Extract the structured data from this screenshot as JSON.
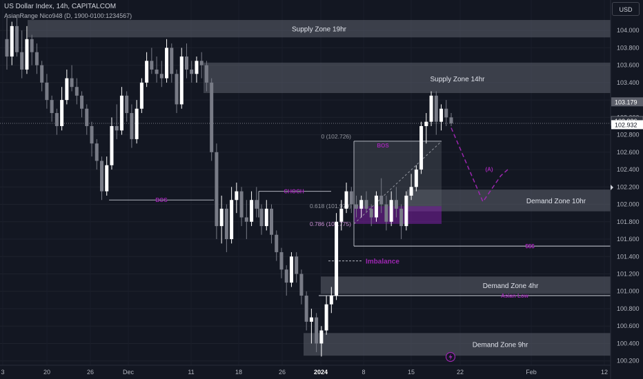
{
  "header": {
    "title": "US Dollar Index, 14h, CAPITALCOM",
    "indicator": "AsianRange Nico948 (D, 1900-0100:1234567)",
    "currency": "USD"
  },
  "colors": {
    "background": "#131722",
    "bull": "#ffffff",
    "bear": "#787b86",
    "zone": "#5d606b",
    "accent": "#9c27b0",
    "fib_zone": "#7b1fa2",
    "text": "#d1d4dc"
  },
  "chart_data": {
    "type": "candlestick",
    "ylim": [
      100.15,
      104.35
    ],
    "y_ticks": [
      "104.000",
      "103.800",
      "103.600",
      "103.400",
      "103.200",
      "103.000",
      "102.800",
      "102.600",
      "102.400",
      "102.200",
      "102.000",
      "101.800",
      "101.600",
      "101.400",
      "101.200",
      "101.000",
      "100.800",
      "100.600",
      "100.400",
      "100.200"
    ],
    "x_ticks": [
      "3",
      "20",
      "26",
      "Dec",
      "11",
      "18",
      "26",
      "2024",
      "8",
      "15",
      "22",
      "Feb",
      "12"
    ],
    "price_labels": [
      {
        "text": "103.179",
        "value": 103.179,
        "style": "gray"
      },
      {
        "text": "102.936",
        "value": 102.936,
        "style": "dark"
      },
      {
        "text": "102.932",
        "value": 102.932,
        "style": "white"
      }
    ],
    "zones": [
      {
        "label": "Supply Zone 19hr",
        "top": 104.12,
        "bottom": 103.92
      },
      {
        "label": "Supply Zone 14hr",
        "top": 103.63,
        "bottom": 103.28
      },
      {
        "label": "Demand Zone 10hr",
        "top": 102.17,
        "bottom": 101.92
      },
      {
        "label": "Demand Zone 4hr",
        "top": 101.17,
        "bottom": 100.97
      },
      {
        "label": "Demand Zone 9hr",
        "top": 100.52,
        "bottom": 100.26
      }
    ],
    "annotations": {
      "bos_left": "BOS",
      "choch": "CHOCH",
      "bos_top": "BOS",
      "fib_0": "0 (102.726)",
      "fib_618": "0.618 (101.979)",
      "fib_786": "0.786 (101.775)",
      "imbalance": "Imbalance",
      "sss": "$$$",
      "asian_low": "Asian Low",
      "wave_a": "(A)"
    },
    "candles": [
      {
        "o": 103.9,
        "h": 104.15,
        "l": 103.55,
        "c": 103.7
      },
      {
        "o": 103.7,
        "h": 104.1,
        "l": 103.6,
        "c": 104.05
      },
      {
        "o": 104.05,
        "h": 104.18,
        "l": 103.7,
        "c": 103.75
      },
      {
        "o": 103.75,
        "h": 104.0,
        "l": 103.45,
        "c": 103.55
      },
      {
        "o": 103.55,
        "h": 104.05,
        "l": 103.5,
        "c": 103.9
      },
      {
        "o": 103.9,
        "h": 103.95,
        "l": 103.6,
        "c": 103.75
      },
      {
        "o": 103.75,
        "h": 103.85,
        "l": 103.5,
        "c": 103.6
      },
      {
        "o": 103.6,
        "h": 103.65,
        "l": 103.3,
        "c": 103.4
      },
      {
        "o": 103.4,
        "h": 103.5,
        "l": 103.1,
        "c": 103.2
      },
      {
        "o": 103.2,
        "h": 103.25,
        "l": 102.95,
        "c": 103.05
      },
      {
        "o": 103.05,
        "h": 103.1,
        "l": 102.8,
        "c": 102.9
      },
      {
        "o": 102.9,
        "h": 103.35,
        "l": 102.85,
        "c": 103.2
      },
      {
        "o": 103.2,
        "h": 103.55,
        "l": 103.15,
        "c": 103.45
      },
      {
        "o": 103.45,
        "h": 103.6,
        "l": 103.3,
        "c": 103.35
      },
      {
        "o": 103.35,
        "h": 103.45,
        "l": 103.15,
        "c": 103.25
      },
      {
        "o": 103.25,
        "h": 103.3,
        "l": 103.0,
        "c": 103.1
      },
      {
        "o": 103.1,
        "h": 103.15,
        "l": 102.8,
        "c": 102.9
      },
      {
        "o": 102.9,
        "h": 102.95,
        "l": 102.55,
        "c": 102.7
      },
      {
        "o": 102.7,
        "h": 102.75,
        "l": 102.4,
        "c": 102.5
      },
      {
        "o": 102.5,
        "h": 102.55,
        "l": 102.05,
        "c": 102.15
      },
      {
        "o": 102.15,
        "h": 102.55,
        "l": 102.1,
        "c": 102.45
      },
      {
        "o": 102.45,
        "h": 103.0,
        "l": 102.4,
        "c": 102.9
      },
      {
        "o": 102.9,
        "h": 103.15,
        "l": 102.75,
        "c": 102.85
      },
      {
        "o": 102.85,
        "h": 103.35,
        "l": 102.8,
        "c": 103.25
      },
      {
        "o": 103.25,
        "h": 103.3,
        "l": 102.95,
        "c": 103.05
      },
      {
        "o": 103.05,
        "h": 103.15,
        "l": 102.65,
        "c": 102.75
      },
      {
        "o": 102.75,
        "h": 103.2,
        "l": 102.7,
        "c": 103.1
      },
      {
        "o": 103.1,
        "h": 103.45,
        "l": 103.05,
        "c": 103.4
      },
      {
        "o": 103.4,
        "h": 103.75,
        "l": 103.35,
        "c": 103.65
      },
      {
        "o": 103.65,
        "h": 103.8,
        "l": 103.5,
        "c": 103.55
      },
      {
        "o": 103.55,
        "h": 103.7,
        "l": 103.4,
        "c": 103.5
      },
      {
        "o": 103.5,
        "h": 103.65,
        "l": 103.35,
        "c": 103.45
      },
      {
        "o": 103.45,
        "h": 103.9,
        "l": 103.4,
        "c": 103.8
      },
      {
        "o": 103.8,
        "h": 103.85,
        "l": 103.4,
        "c": 103.5
      },
      {
        "o": 103.5,
        "h": 103.55,
        "l": 103.05,
        "c": 103.15
      },
      {
        "o": 103.15,
        "h": 103.8,
        "l": 103.1,
        "c": 103.7
      },
      {
        "o": 103.7,
        "h": 103.85,
        "l": 103.45,
        "c": 103.55
      },
      {
        "o": 103.55,
        "h": 103.65,
        "l": 103.4,
        "c": 103.5
      },
      {
        "o": 103.5,
        "h": 103.7,
        "l": 103.4,
        "c": 103.65
      },
      {
        "o": 103.65,
        "h": 103.75,
        "l": 103.45,
        "c": 103.6
      },
      {
        "o": 103.6,
        "h": 103.65,
        "l": 103.3,
        "c": 103.4
      },
      {
        "o": 103.4,
        "h": 103.45,
        "l": 102.5,
        "c": 102.6
      },
      {
        "o": 102.6,
        "h": 102.7,
        "l": 101.6,
        "c": 101.75
      },
      {
        "o": 101.75,
        "h": 102.1,
        "l": 101.55,
        "c": 101.95
      },
      {
        "o": 101.95,
        "h": 102.0,
        "l": 101.45,
        "c": 101.6
      },
      {
        "o": 101.6,
        "h": 102.2,
        "l": 101.55,
        "c": 102.05
      },
      {
        "o": 102.05,
        "h": 102.25,
        "l": 101.9,
        "c": 102.15
      },
      {
        "o": 102.15,
        "h": 102.2,
        "l": 101.75,
        "c": 101.85
      },
      {
        "o": 101.85,
        "h": 102.05,
        "l": 101.6,
        "c": 101.8
      },
      {
        "o": 101.8,
        "h": 102.15,
        "l": 101.75,
        "c": 102.05
      },
      {
        "o": 102.05,
        "h": 102.2,
        "l": 101.85,
        "c": 101.95
      },
      {
        "o": 101.95,
        "h": 102.0,
        "l": 101.65,
        "c": 101.75
      },
      {
        "o": 101.75,
        "h": 102.05,
        "l": 101.7,
        "c": 101.95
      },
      {
        "o": 101.95,
        "h": 102.0,
        "l": 101.55,
        "c": 101.65
      },
      {
        "o": 101.65,
        "h": 101.7,
        "l": 101.35,
        "c": 101.45
      },
      {
        "o": 101.45,
        "h": 101.5,
        "l": 101.15,
        "c": 101.25
      },
      {
        "o": 101.25,
        "h": 101.3,
        "l": 100.95,
        "c": 101.1
      },
      {
        "o": 101.1,
        "h": 101.45,
        "l": 101.05,
        "c": 101.4
      },
      {
        "o": 101.4,
        "h": 101.45,
        "l": 101.1,
        "c": 101.2
      },
      {
        "o": 101.2,
        "h": 101.25,
        "l": 100.85,
        "c": 100.95
      },
      {
        "o": 100.95,
        "h": 101.0,
        "l": 100.55,
        "c": 100.65
      },
      {
        "o": 100.65,
        "h": 100.8,
        "l": 100.4,
        "c": 100.7
      },
      {
        "o": 100.7,
        "h": 100.75,
        "l": 100.3,
        "c": 100.4
      },
      {
        "o": 100.4,
        "h": 100.6,
        "l": 100.25,
        "c": 100.55
      },
      {
        "o": 100.55,
        "h": 100.95,
        "l": 100.5,
        "c": 100.85
      },
      {
        "o": 100.85,
        "h": 101.05,
        "l": 100.75,
        "c": 100.95
      },
      {
        "o": 100.95,
        "h": 101.9,
        "l": 100.9,
        "c": 101.8
      },
      {
        "o": 101.8,
        "h": 102.05,
        "l": 101.7,
        "c": 101.95
      },
      {
        "o": 101.95,
        "h": 102.25,
        "l": 101.9,
        "c": 102.15
      },
      {
        "o": 102.15,
        "h": 102.2,
        "l": 101.9,
        "c": 102.0
      },
      {
        "o": 102.0,
        "h": 102.1,
        "l": 101.85,
        "c": 101.95
      },
      {
        "o": 101.95,
        "h": 102.1,
        "l": 101.85,
        "c": 102.05
      },
      {
        "o": 102.05,
        "h": 102.15,
        "l": 101.9,
        "c": 101.95
      },
      {
        "o": 101.95,
        "h": 102.0,
        "l": 101.75,
        "c": 101.85
      },
      {
        "o": 101.85,
        "h": 102.15,
        "l": 101.8,
        "c": 102.1
      },
      {
        "o": 102.1,
        "h": 102.3,
        "l": 101.9,
        "c": 102.0
      },
      {
        "o": 102.0,
        "h": 102.1,
        "l": 101.7,
        "c": 101.8
      },
      {
        "o": 101.8,
        "h": 102.15,
        "l": 101.75,
        "c": 102.05
      },
      {
        "o": 102.05,
        "h": 102.2,
        "l": 101.85,
        "c": 101.95
      },
      {
        "o": 101.95,
        "h": 102.0,
        "l": 101.6,
        "c": 101.75
      },
      {
        "o": 101.75,
        "h": 102.15,
        "l": 101.7,
        "c": 102.1
      },
      {
        "o": 102.1,
        "h": 102.35,
        "l": 102.05,
        "c": 102.2
      },
      {
        "o": 102.2,
        "h": 102.45,
        "l": 102.15,
        "c": 102.4
      },
      {
        "o": 102.4,
        "h": 102.95,
        "l": 102.35,
        "c": 102.9
      },
      {
        "o": 102.9,
        "h": 103.05,
        "l": 102.7,
        "c": 102.95
      },
      {
        "o": 102.95,
        "h": 103.3,
        "l": 102.9,
        "c": 103.25
      },
      {
        "o": 103.25,
        "h": 103.3,
        "l": 102.8,
        "c": 102.95
      },
      {
        "o": 102.95,
        "h": 103.15,
        "l": 102.85,
        "c": 103.1
      },
      {
        "o": 103.1,
        "h": 103.2,
        "l": 102.9,
        "c": 103.0
      },
      {
        "o": 103.0,
        "h": 103.05,
        "l": 102.9,
        "c": 102.93
      }
    ],
    "projection": [
      102.88,
      102.03,
      102.33,
      102.4
    ]
  }
}
